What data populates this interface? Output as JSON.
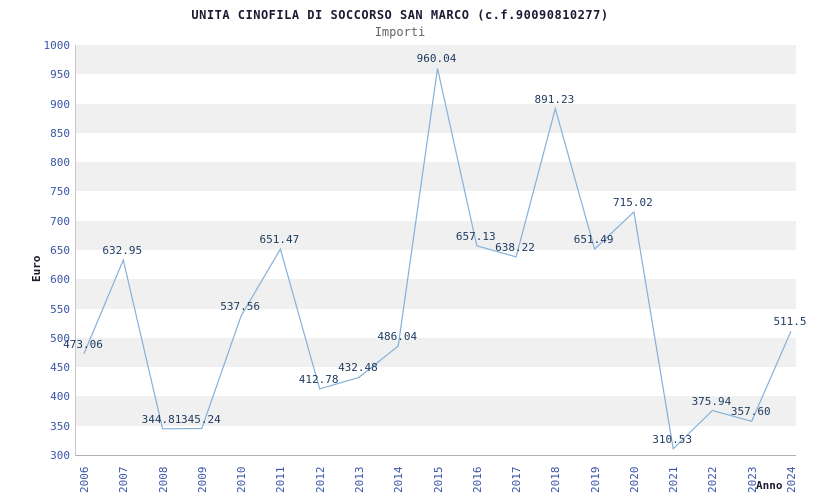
{
  "title": "UNITA CINOFILA DI SOCCORSO SAN MARCO (c.f.90090810277)",
  "subtitle": "Importi",
  "chart_data": {
    "type": "line",
    "x": [
      2006,
      2007,
      2008,
      2009,
      2010,
      2011,
      2012,
      2013,
      2014,
      2015,
      2016,
      2017,
      2018,
      2019,
      2020,
      2021,
      2022,
      2023,
      2024
    ],
    "values": [
      473.06,
      632.95,
      344.81,
      345.24,
      537.56,
      651.47,
      412.78,
      432.48,
      486.04,
      960.04,
      657.13,
      638.22,
      891.23,
      651.49,
      715.02,
      310.53,
      375.94,
      357.6,
      511.5
    ],
    "point_labels": [
      "473.06",
      "632.95",
      "344.81",
      "345.24",
      "537.56",
      "651.47",
      "412.78",
      "432.48",
      "486.04",
      "960.04",
      "657.13",
      "638.22",
      "891.23",
      "651.49",
      "715.02",
      "310.53",
      "375.94",
      "357.60",
      "511.5"
    ],
    "title": "UNITA CINOFILA DI SOCCORSO SAN MARCO (c.f.90090810277)",
    "subtitle": "Importi",
    "xlabel": "Anno",
    "ylabel": "Euro",
    "ylim": [
      300,
      1000
    ],
    "ytick_step": 50,
    "yticks": [
      1000,
      950,
      900,
      850,
      800,
      750,
      700,
      650,
      600,
      550,
      500,
      450,
      400,
      350,
      300
    ],
    "grid": "banded-rows",
    "legend": "none",
    "line_color": "#84b1da",
    "band_color_odd": "#f0f0f0",
    "band_color_even": "#ffffff",
    "tick_label_color": "#3b55a8",
    "point_label_color": "#1e3a5f",
    "title_color": "#1a1a33",
    "subtitle_color": "#666666",
    "axis_title_color": "#1a1a33"
  }
}
